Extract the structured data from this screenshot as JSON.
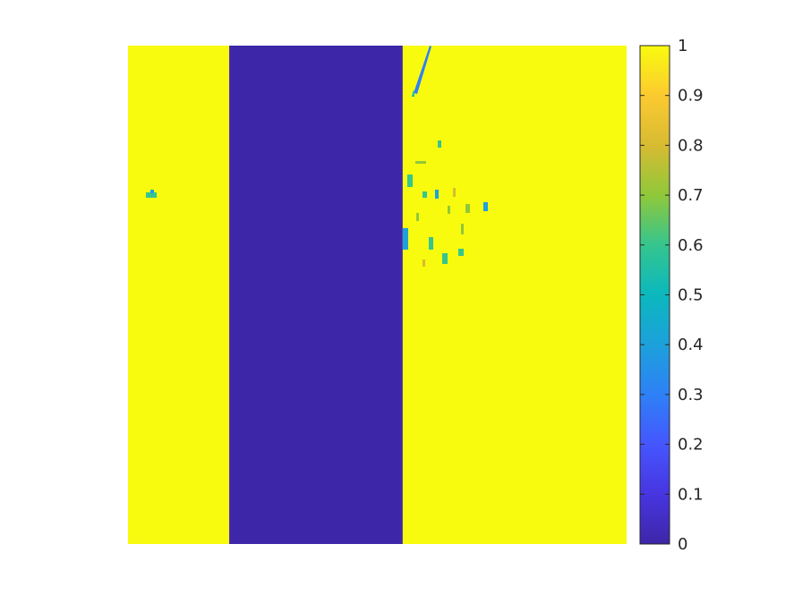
{
  "chart_data": {
    "type": "heatmap",
    "title": "",
    "xlabel": "",
    "ylabel": "",
    "axes_visible": false,
    "colormap": "parula",
    "clim": [
      0,
      1
    ],
    "colorbar": {
      "location": "right",
      "ticks": [
        0,
        0.1,
        0.2,
        0.3,
        0.4,
        0.5,
        0.6,
        0.7,
        0.8,
        0.9,
        1
      ],
      "tick_labels": [
        "0",
        "0.1",
        "0.2",
        "0.3",
        "0.4",
        "0.5",
        "0.6",
        "0.7",
        "0.8",
        "0.9",
        "1"
      ]
    },
    "image_regions": [
      {
        "from": 0.0,
        "to": 0.203,
        "value": 1
      },
      {
        "from": 0.203,
        "to": 0.551,
        "value": 0
      },
      {
        "from": 0.551,
        "to": 1.0,
        "value": 1
      }
    ],
    "colors": {
      "high": "#F9FB0E",
      "low": "#3E26A8"
    }
  }
}
